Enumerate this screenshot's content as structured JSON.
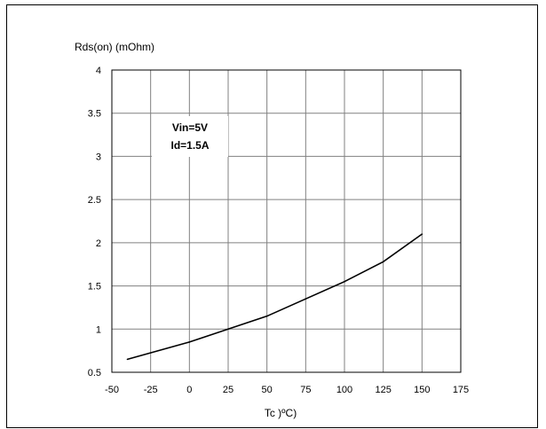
{
  "chart_data": {
    "type": "line",
    "title": "",
    "ylabel": "Rds(on) (mOhm)",
    "xlabel": "Tc )ºC)",
    "xlim": [
      -50,
      175
    ],
    "ylim": [
      0.5,
      4
    ],
    "x_ticks": [
      -50,
      -25,
      0,
      25,
      50,
      75,
      100,
      125,
      150,
      175
    ],
    "y_ticks": [
      0.5,
      1,
      1.5,
      2,
      2.5,
      3,
      3.5,
      4
    ],
    "grid": true,
    "annotation": [
      "Vin=5V",
      "Id=1.5A"
    ],
    "series": [
      {
        "x": [
          -40,
          0,
          25,
          50,
          75,
          100,
          125,
          150
        ],
        "y": [
          0.65,
          0.85,
          1.0,
          1.15,
          1.35,
          1.55,
          1.78,
          2.1
        ]
      }
    ]
  }
}
